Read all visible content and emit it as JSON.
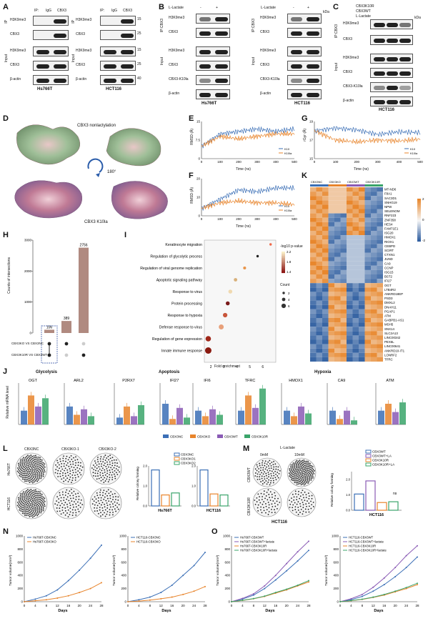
{
  "panels": {
    "A": {
      "letter": "A",
      "ip_header": "IP:",
      "ip_cols": [
        "IgG",
        "CBX3"
      ],
      "group_ip": "IP",
      "group_input": "Input",
      "rows": [
        "H3K9me3",
        "CBX3",
        "CBX3",
        "β-actin"
      ],
      "cell_lines": [
        "Hs766T",
        "HCT116"
      ],
      "kda": [
        "15",
        "25",
        "15",
        "25",
        "25",
        "40"
      ]
    },
    "B": {
      "letter": "B",
      "condition": "L-Lactate",
      "signs": [
        "-",
        "+"
      ],
      "group_ip": "IP:CBX3",
      "group_input": "Input",
      "rows": [
        "H3K9me3",
        "CBX3",
        "H3K9me3",
        "CBX3",
        "CBX3-K10la",
        "β-actin"
      ],
      "cell_lines": [
        "Hs766T",
        "HCT116"
      ],
      "kda_label": "kDa"
    },
    "C": {
      "letter": "C",
      "conditions": [
        "CBX3K10R",
        "CBX3WT",
        "L-Lactate"
      ],
      "group_ip": "IP:CBX3",
      "group_input": "Input",
      "rows": [
        "H3K9me3",
        "CBX3",
        "H3K9me3",
        "CBX3",
        "CBX3-K10la",
        "β-actin"
      ],
      "cell_line": "HCT116",
      "kda_label": "kDa"
    },
    "D": {
      "letter": "D",
      "label_top": "CBX3 nonlactylation",
      "label_bottom": "CBX3 K10la",
      "rotation": "180°"
    },
    "E": {
      "letter": "E",
      "ylabel": "RMSD (Å)",
      "xlabel": "Time (ns)",
      "legend": [
        "K10",
        "K10la"
      ]
    },
    "F": {
      "letter": "F",
      "ylabel": "RMSD (Å)",
      "xlabel": "Time (ns)",
      "legend": [
        "K10",
        "K10la"
      ]
    },
    "G": {
      "letter": "G",
      "ylabel": "rGyr (Å)",
      "xlabel": "Time (ns)",
      "legend": [
        "K10",
        "K10la"
      ]
    },
    "H": {
      "letter": "H",
      "ylabel": "Counts of intersections",
      "rows": [
        "CBX3KO VS CBX3NC",
        "CBX3K10R VS CBX3WT"
      ]
    },
    "I": {
      "letter": "I",
      "xlabel": "Fold enrichment",
      "legend_title": "-log10 p-value",
      "count_title": "Count"
    },
    "J": {
      "letter": "J",
      "ylabel": "Relative mRNA level",
      "groups": [
        "Glycolysis",
        "Apoptosis",
        "Hypoxia"
      ],
      "legend": [
        "CBX3NC",
        "CBX3KO",
        "CBX3WT",
        "CBX3K10R"
      ]
    },
    "K": {
      "letter": "K",
      "col_groups": [
        "CBX3NC",
        "CBX3KO",
        "CBX3WT",
        "CBX3K10R"
      ]
    },
    "L": {
      "letter": "L",
      "cols": [
        "CBX3NC",
        "CBX3KO-1",
        "CBX3KO-2"
      ],
      "rows": [
        "Hs766T",
        "HCT116"
      ],
      "ylabel": "Relative colony forming",
      "legend": [
        "CBX3NC",
        "CBX3KO1",
        "CBX3KO2"
      ],
      "xlabels": [
        "Hs766T",
        "HCT116"
      ]
    },
    "M": {
      "letter": "M",
      "condition": "L-Lactate",
      "doses": [
        "0mM",
        "10mM"
      ],
      "rows": [
        "CBX3WT",
        "CBX3K10R"
      ],
      "cell_line": "HCT116",
      "legend": [
        "CBX3WT",
        "CBX3WT+LA",
        "CBX3K10R",
        "CBX3K10R+LA"
      ],
      "ylabel": "Relative colony forming",
      "ns": "ns"
    },
    "N": {
      "letter": "N",
      "xlabel": "Days",
      "ylabel": "Tumor volume(mm³)"
    },
    "O": {
      "letter": "O",
      "xlabel": "Days",
      "ylabel": "Tumor volume(mm³)"
    }
  },
  "chart_data": [
    {
      "type": "line",
      "id": "E",
      "x": [
        0,
        100,
        200,
        300,
        400,
        500
      ],
      "xlim": [
        0,
        500
      ],
      "ylim": [
        0,
        15
      ],
      "series": [
        {
          "name": "K10",
          "values": [
            5,
            10,
            11,
            12,
            11,
            12
          ]
        },
        {
          "name": "K10la",
          "values": [
            5,
            9,
            8,
            9,
            10,
            10
          ]
        }
      ]
    },
    {
      "type": "line",
      "id": "F",
      "x": [
        0,
        100,
        200,
        300,
        400,
        500
      ],
      "xlim": [
        0,
        500
      ],
      "ylim": [
        0,
        20
      ],
      "series": [
        {
          "name": "K10",
          "values": [
            4,
            9,
            14,
            13,
            15,
            15
          ]
        },
        {
          "name": "K10la",
          "values": [
            4,
            7,
            8,
            7,
            7,
            6
          ]
        }
      ]
    },
    {
      "type": "line",
      "id": "G",
      "x": [
        0,
        100,
        200,
        300,
        400,
        500
      ],
      "xlim": [
        0,
        500
      ],
      "ylim": [
        15,
        19
      ],
      "series": [
        {
          "name": "K10",
          "values": [
            18,
            18.3,
            18.1,
            17.6,
            17.9,
            17.8
          ]
        },
        {
          "name": "K10la",
          "values": [
            18,
            17,
            16.8,
            17,
            16.9,
            17.1
          ]
        }
      ]
    },
    {
      "type": "bar",
      "id": "H",
      "categories": [
        "both",
        "CBX3KO VS CBX3NC",
        "CBX3K10R VS CBX3WT"
      ],
      "values": [
        106,
        389,
        2756
      ],
      "ylim": [
        0,
        3000
      ]
    },
    {
      "type": "scatter",
      "id": "I",
      "categories": [
        "Keratinocyte migration",
        "Regulation of glycolytic process",
        "Regulation of viral genome replication",
        "Apoptotic signaling pathway",
        "Response to virus",
        "Protein processing",
        "Response to hypoxia",
        "Defense response to virus",
        "Regulation of gene expression",
        "Innate immune response"
      ],
      "fold_enrichment": [
        6.6,
        5.6,
        4.6,
        3.9,
        3.5,
        3.3,
        3.1,
        2.8,
        1.8,
        1.8
      ],
      "count": [
        2,
        2,
        3,
        4,
        5,
        5,
        6,
        7,
        8,
        10
      ],
      "xlim": [
        1.5,
        7
      ]
    },
    {
      "type": "bar",
      "id": "J",
      "categories": [
        "OGT",
        "ARL2",
        "P2RX7",
        "IFI27",
        "IFI6",
        "TFRC",
        "HMOX1",
        "CA9",
        "ATM"
      ],
      "series": [
        {
          "name": "CBX3NC",
          "values": [
            1.0,
            1.3,
            0.5,
            1.5,
            1.0,
            1.0,
            1.0,
            1.0,
            1.0
          ]
        },
        {
          "name": "CBX3KO",
          "values": [
            2.1,
            0.7,
            1.3,
            0.4,
            0.6,
            2.1,
            0.6,
            0.4,
            1.5
          ]
        },
        {
          "name": "CBX3WT",
          "values": [
            1.3,
            1.1,
            0.6,
            1.2,
            1.1,
            1.2,
            1.3,
            1.0,
            0.9
          ]
        },
        {
          "name": "CBX3K10R",
          "values": [
            1.9,
            0.6,
            1.4,
            0.5,
            0.7,
            2.6,
            0.8,
            0.3,
            1.6
          ]
        }
      ]
    },
    {
      "type": "heatmap",
      "id": "K",
      "rows": [
        "MT-ND6",
        "F8A1",
        "SAC3D1",
        "SNHG19",
        "NPW",
        "SELENOM",
        "RNF223",
        "ZNF358",
        "HES4",
        "FAM71E1",
        "ISG20",
        "HMOX1",
        "RIOX1",
        "CEBPD",
        "SCIRT",
        "CTXN1",
        "JUND",
        "CA9",
        "CCNP",
        "ISG15",
        "BST2",
        "IFI27",
        "OGT",
        "LTB4R2",
        "ANKRD18EP",
        "PSD3",
        "DMXL2",
        "DNAH11",
        "PGAP1",
        "ATM",
        "GABPB1-AS1",
        "MSH5",
        "SNX14",
        "SLC2A13",
        "LINC00342",
        "PEX5L",
        "LINC00641",
        "ANKRD10-IT1",
        "LONRF2",
        "TFRC"
      ],
      "scale": [
        -2,
        0,
        2
      ]
    },
    {
      "type": "bar",
      "id": "L",
      "categories": [
        "Hs766T",
        "HCT116"
      ],
      "series": [
        {
          "name": "CBX3NC",
          "values": [
            1.8,
            1.8
          ]
        },
        {
          "name": "CBX3KO1",
          "values": [
            0.55,
            0.6
          ]
        },
        {
          "name": "CBX3KO2",
          "values": [
            0.65,
            0.55
          ]
        }
      ],
      "ylim": [
        0,
        2.0
      ]
    },
    {
      "type": "bar",
      "id": "M",
      "categories": [
        "HCT116"
      ],
      "series": [
        {
          "name": "CBX3WT",
          "values": [
            1.05
          ]
        },
        {
          "name": "CBX3WT+LA",
          "values": [
            1.9
          ]
        },
        {
          "name": "CBX3K10R",
          "values": [
            0.5
          ]
        },
        {
          "name": "CBX3K10R+LA",
          "values": [
            0.55
          ]
        }
      ],
      "ylim": [
        0,
        2.5
      ]
    },
    {
      "type": "line",
      "id": "N1",
      "x": [
        0,
        4,
        8,
        12,
        16,
        20,
        24,
        28
      ],
      "ylim": [
        0,
        1000
      ],
      "series": [
        {
          "name": "Hs766T-CBX3NC",
          "values": [
            0,
            40,
            90,
            180,
            320,
            480,
            660,
            860
          ]
        },
        {
          "name": "Hs766T-CBX3KO",
          "values": [
            0,
            15,
            30,
            55,
            90,
            140,
            200,
            290
          ]
        }
      ]
    },
    {
      "type": "line",
      "id": "N2",
      "x": [
        0,
        4,
        8,
        12,
        16,
        20,
        24,
        28
      ],
      "ylim": [
        0,
        1000
      ],
      "series": [
        {
          "name": "HCT116-CBX3NC",
          "values": [
            0,
            30,
            70,
            140,
            250,
            400,
            550,
            750
          ]
        },
        {
          "name": "HCT116-CBX3KO",
          "values": [
            0,
            10,
            25,
            45,
            70,
            110,
            160,
            230
          ]
        }
      ]
    },
    {
      "type": "line",
      "id": "O1",
      "x": [
        0,
        4,
        8,
        12,
        16,
        20,
        24,
        28
      ],
      "ylim": [
        0,
        1000
      ],
      "series": [
        {
          "name": "Hs766T-CBX3WT",
          "values": [
            0,
            40,
            100,
            200,
            330,
            470,
            620,
            780
          ]
        },
        {
          "name": "Hs766T-CBX3WT+lactate",
          "values": [
            0,
            50,
            120,
            240,
            400,
            580,
            760,
            920
          ]
        },
        {
          "name": "Hs766T-CBX3K10R",
          "values": [
            0,
            20,
            45,
            80,
            130,
            180,
            240,
            300
          ]
        },
        {
          "name": "Hs766T-CBX3K10R+lactate",
          "values": [
            0,
            22,
            48,
            85,
            140,
            190,
            250,
            320
          ]
        }
      ]
    },
    {
      "type": "line",
      "id": "O2",
      "x": [
        0,
        4,
        8,
        12,
        16,
        20,
        24,
        28
      ],
      "ylim": [
        0,
        1000
      ],
      "series": [
        {
          "name": "HCT116-CBX3WT",
          "values": [
            0,
            30,
            80,
            160,
            260,
            380,
            520,
            680
          ]
        },
        {
          "name": "HCT116-CBX3WT+lactate",
          "values": [
            0,
            45,
            110,
            220,
            360,
            520,
            700,
            850
          ]
        },
        {
          "name": "HCT116-CBX3K10R",
          "values": [
            0,
            15,
            35,
            65,
            100,
            150,
            200,
            260
          ]
        },
        {
          "name": "HCT116-CBX3K10R+lactate",
          "values": [
            0,
            17,
            38,
            70,
            110,
            160,
            215,
            280
          ]
        }
      ]
    }
  ]
}
